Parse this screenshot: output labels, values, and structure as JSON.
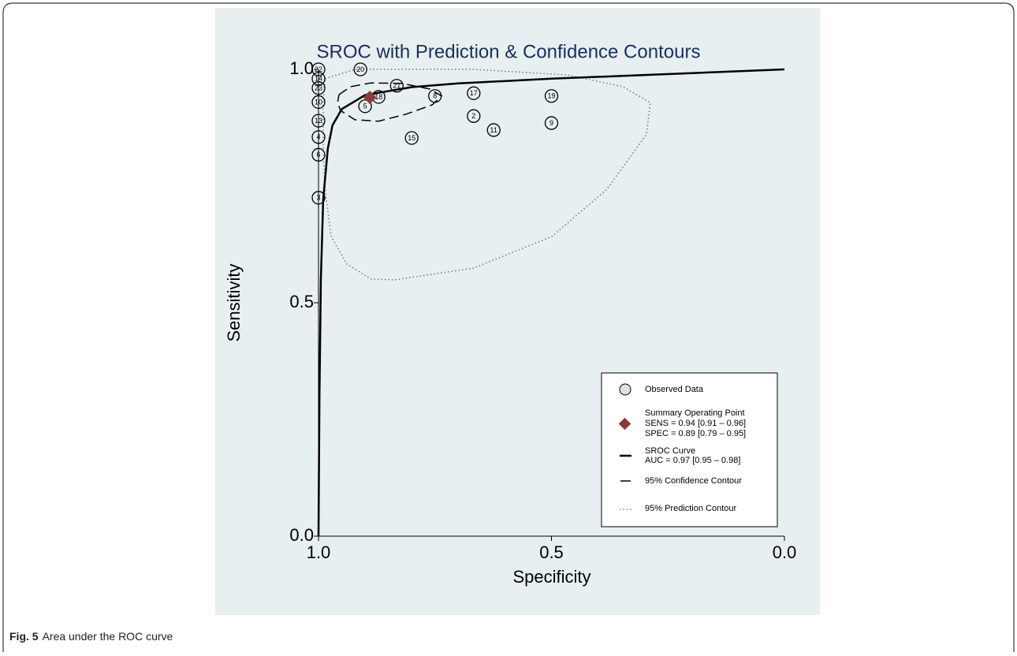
{
  "chart_data": {
    "type": "scatter",
    "title": "SROC with Prediction & Confidence Contours",
    "x_label": "Specificity",
    "y_label": "Sensitivity",
    "xlim": [
      1,
      0
    ],
    "ylim": [
      0,
      1
    ],
    "xticks": [
      {
        "value": 1,
        "label": "1.0"
      },
      0.5,
      {
        "value": 0,
        "label": "0.0"
      }
    ],
    "yticks": [
      {
        "value": 0,
        "label": "0.0"
      },
      0.5,
      {
        "value": 1,
        "label": "1.0"
      }
    ],
    "points": [
      {
        "label": "22",
        "spec": 1.0,
        "sens": 1.0
      },
      {
        "label": "14",
        "spec": 1.0,
        "sens": 0.98
      },
      {
        "label": "23",
        "spec": 1.0,
        "sens": 0.96
      },
      {
        "label": "10",
        "spec": 1.0,
        "sens": 0.93
      },
      {
        "label": "13",
        "spec": 1.0,
        "sens": 0.89
      },
      {
        "label": "4",
        "spec": 1.0,
        "sens": 0.855
      },
      {
        "label": "6",
        "spec": 1.0,
        "sens": 0.817
      },
      {
        "label": "3",
        "spec": 1.0,
        "sens": 0.725
      },
      {
        "label": "20",
        "spec": 0.91,
        "sens": 1.0
      },
      {
        "label": "21",
        "spec": 0.832,
        "sens": 0.965
      },
      {
        "label": "8",
        "spec": 0.75,
        "sens": 0.943
      },
      {
        "label": "17",
        "spec": 0.667,
        "sens": 0.949
      },
      {
        "label": "19",
        "spec": 0.5,
        "sens": 0.943
      },
      {
        "label": "5",
        "spec": 0.9,
        "sens": 0.921
      },
      {
        "label": "18",
        "spec": 0.871,
        "sens": 0.941
      },
      {
        "label": "2",
        "spec": 0.667,
        "sens": 0.9
      },
      {
        "label": "11",
        "spec": 0.624,
        "sens": 0.87
      },
      {
        "label": "9",
        "spec": 0.5,
        "sens": 0.885
      },
      {
        "label": "15",
        "spec": 0.8,
        "sens": 0.853
      }
    ],
    "summary_point": {
      "spec": 0.89,
      "sens": 0.94,
      "color": "#8b3a3a"
    },
    "sroc_curve": {
      "spec": [
        1.0,
        0.998,
        0.995,
        0.99,
        0.98,
        0.97,
        0.95,
        0.9,
        0.8,
        0.7,
        0.5,
        0.3,
        0.0
      ],
      "sens": [
        0.0,
        0.3,
        0.55,
        0.72,
        0.83,
        0.88,
        0.915,
        0.945,
        0.962,
        0.97,
        0.98,
        0.988,
        1.0
      ]
    },
    "confidence_contour": {
      "spec": [
        0.956,
        0.931,
        0.888,
        0.821,
        0.761,
        0.736,
        0.756,
        0.812,
        0.871,
        0.922,
        0.953,
        0.959,
        0.956
      ],
      "sens": [
        0.946,
        0.963,
        0.971,
        0.97,
        0.958,
        0.943,
        0.924,
        0.904,
        0.889,
        0.892,
        0.912,
        0.929,
        0.946
      ]
    },
    "prediction_contour": {
      "spec": [
        0.986,
        0.922,
        0.668,
        0.465,
        0.347,
        0.288,
        0.296,
        0.381,
        0.499,
        0.668,
        0.838,
        0.888,
        0.939,
        0.973,
        0.986,
        0.99,
        0.99,
        0.986
      ],
      "sens": [
        0.98,
        1.0,
        1.0,
        0.988,
        0.963,
        0.929,
        0.861,
        0.743,
        0.642,
        0.574,
        0.549,
        0.551,
        0.583,
        0.642,
        0.743,
        0.845,
        0.929,
        0.98
      ]
    },
    "legend": {
      "observed": "Observed Data",
      "summary": "Summary Operating Point",
      "sens_text": "SENS = 0.94 [0.91 – 0.96]",
      "spec_text": "SPEC = 0.89 [0.79 – 0.95]",
      "sroc": "SROC Curve",
      "auc_text": "AUC = 0.97 [0.95 – 0.98]",
      "confidence": "95% Confidence Contour",
      "prediction": "95% Prediction Contour"
    }
  },
  "caption": {
    "label": "Fig. 5",
    "text": "Area under the ROC curve"
  }
}
